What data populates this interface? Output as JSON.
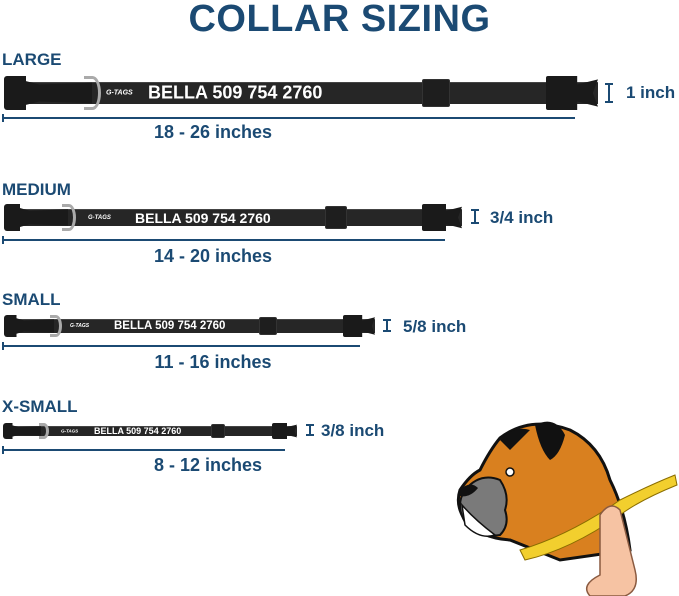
{
  "title": "COLLAR SIZING",
  "collar_text": "BELLA 509 754 2760",
  "brand_logo": "G-TAGS",
  "sizes": [
    {
      "name": "LARGE",
      "range": "18 - 26 inches",
      "width": "1 inch"
    },
    {
      "name": "MEDIUM",
      "range": "14 - 20 inches",
      "width": "3/4 inch"
    },
    {
      "name": "SMALL",
      "range": "11 - 16 inches",
      "width": "5/8 inch"
    },
    {
      "name": "X-SMALL",
      "range": "8 - 12 inches",
      "width": "3/8 inch"
    }
  ],
  "colors": {
    "text": "#1b4a73",
    "collar": "#262626",
    "dog_fur": "#d9801f",
    "tape": "#f2cf2e"
  },
  "illustration": "boxer-dog-neck-measurement"
}
